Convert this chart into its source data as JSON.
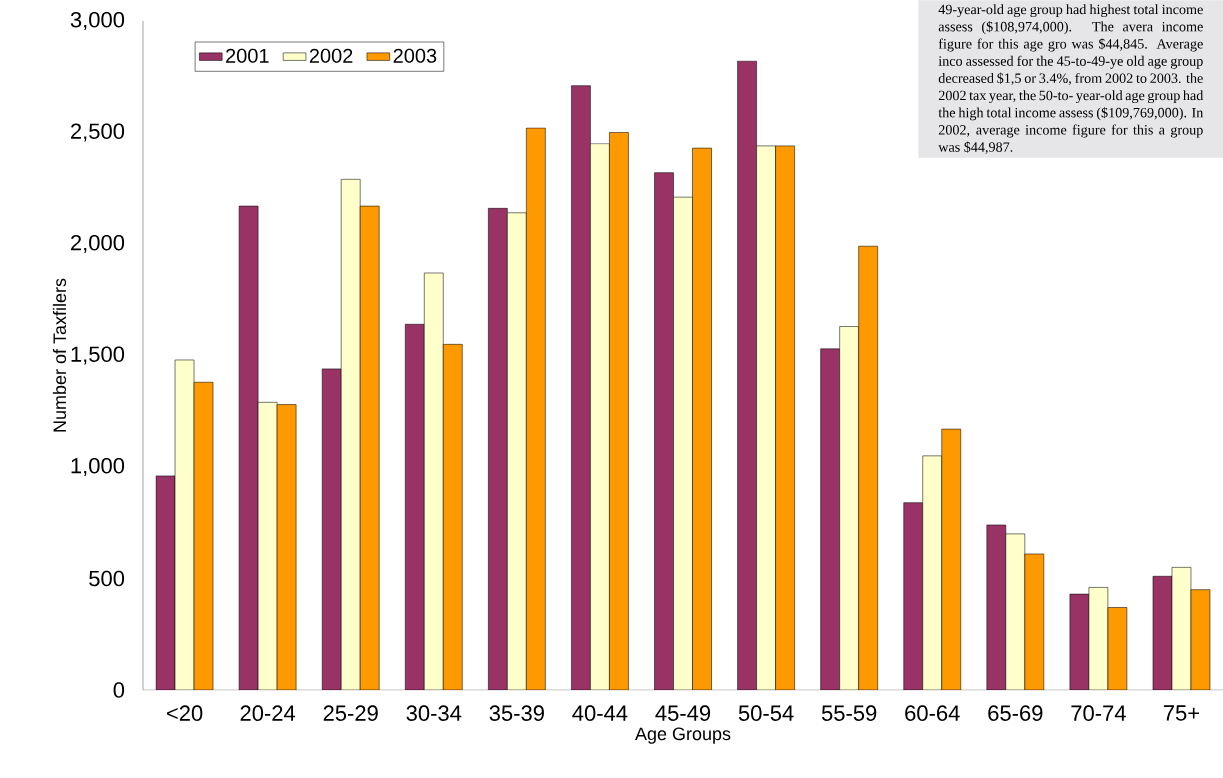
{
  "chart_data": {
    "type": "bar",
    "categories": [
      "<20",
      "20-24",
      "25-29",
      "30-34",
      "35-39",
      "40-44",
      "45-49",
      "50-54",
      "55-59",
      "60-64",
      "65-69",
      "70-74",
      "75+"
    ],
    "series": [
      {
        "name": "2001",
        "color": "#993366",
        "values": [
          960,
          2170,
          1440,
          1640,
          2160,
          2710,
          2320,
          2820,
          1530,
          840,
          740,
          430,
          510
        ]
      },
      {
        "name": "2002",
        "color": "#ffffcc",
        "values": [
          1480,
          1290,
          2290,
          1870,
          2140,
          2450,
          2210,
          2440,
          1630,
          1050,
          700,
          460,
          550
        ]
      },
      {
        "name": "2003",
        "color": "#ff9900",
        "values": [
          1380,
          1280,
          2170,
          1550,
          2520,
          2500,
          2430,
          2440,
          1990,
          1170,
          610,
          370,
          450
        ]
      }
    ],
    "xlabel": "Age Groups",
    "ylabel": "Number of Taxfilers",
    "ylim": [
      0,
      3000
    ],
    "yticks": [
      0,
      500,
      {
        "value": 1000,
        "label": "1,000"
      },
      {
        "value": 1500,
        "label": "1,500"
      },
      {
        "value": 2000,
        "label": "2,000"
      },
      {
        "value": 2500,
        "label": "2,500"
      },
      {
        "value": 3000,
        "label": "3,000"
      }
    ],
    "legend": "top left",
    "annotations": [
      "49-year-old age group had highest total income assess ($108,974,000). The avera income figure for this age gro was $44,845. Average inco assessed for the 45-to-49-ye old age group decreased $1,5 or 3.4%, from 2002 to 2003. the 2002 tax year, the 50-to- year-old age group had the high total income assess ($109,769,000). In 2002, average income figure for this a group was $44,987."
    ]
  }
}
